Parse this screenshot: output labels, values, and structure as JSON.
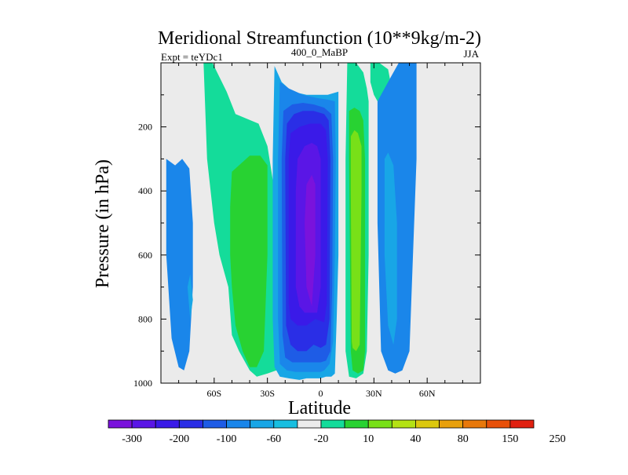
{
  "chart_data": {
    "type": "heatmap",
    "title": "Meridional Streamfunction (10**9kg/m-2)",
    "subtitle_left": "Expt = teYDc1",
    "subtitle_center": "400_0_MaBP",
    "subtitle_right": "JJA",
    "xlabel": "Latitude",
    "ylabel": "Pressure (in hPa)",
    "xlim": [
      -90,
      90
    ],
    "ylim": [
      1000,
      0
    ],
    "x_ticks": [
      {
        "value": -60,
        "label": "60S"
      },
      {
        "value": -30,
        "label": "30S"
      },
      {
        "value": 0,
        "label": "0"
      },
      {
        "value": 30,
        "label": "30N"
      },
      {
        "value": 60,
        "label": "60N"
      }
    ],
    "y_ticks": [
      {
        "value": 200,
        "label": "200"
      },
      {
        "value": 400,
        "label": "400"
      },
      {
        "value": 600,
        "label": "600"
      },
      {
        "value": 800,
        "label": "800"
      },
      {
        "value": 1000,
        "label": "1000"
      }
    ],
    "colorbar": {
      "labels": [
        "-300",
        "-200",
        "-100",
        "-60",
        "-20",
        "10",
        "40",
        "80",
        "150",
        "250"
      ],
      "colors": [
        "#7a12dc",
        "#5a16e6",
        "#3a1ae8",
        "#2a2ee6",
        "#1e5ce6",
        "#1a86ea",
        "#18a6e6",
        "#18bee0",
        "#ebebeb",
        "#14dc9a",
        "#28d232",
        "#78e018",
        "#b4e214",
        "#dcc80e",
        "#e8a00c",
        "#e8780a",
        "#e85008",
        "#e02010"
      ]
    },
    "background_color": "#ebebeb",
    "regions": [
      {
        "name": "contour-sh-high-cyan",
        "level": 5,
        "x": [
          -87,
          -82,
          -78,
          -74,
          -72,
          -72,
          -74,
          -77,
          -80,
          -84,
          -87
        ],
        "y": [
          300,
          320,
          300,
          330,
          500,
          700,
          900,
          960,
          950,
          860,
          600
        ]
      },
      {
        "name": "contour-sh-high-cyan-core",
        "level": 6,
        "x": [
          -75,
          -73.5,
          -72,
          -73.5
        ],
        "y": [
          700,
          660,
          740,
          800
        ]
      },
      {
        "name": "contour-sh-mid-teal",
        "level": 9,
        "x": [
          -66,
          -61,
          -53,
          -48,
          -35,
          -30,
          -26,
          -25,
          -25,
          -30,
          -36,
          -40,
          -46,
          -50,
          -52,
          -57,
          -60,
          -64
        ],
        "y": [
          0,
          0,
          90,
          160,
          190,
          260,
          400,
          600,
          960,
          970,
          980,
          960,
          900,
          850,
          700,
          600,
          500,
          300
        ]
      },
      {
        "name": "contour-sh-mid-green",
        "level": 10,
        "x": [
          -50,
          -40,
          -34,
          -30,
          -30,
          -32,
          -36,
          -40,
          -44,
          -48,
          -50,
          -51,
          -51
        ],
        "y": [
          340,
          290,
          290,
          320,
          600,
          900,
          950,
          950,
          900,
          820,
          700,
          600,
          450
        ]
      },
      {
        "name": "contour-eq-cell-cyan",
        "level": 6,
        "x": [
          -26,
          -22,
          -16,
          -8,
          -2,
          4,
          10,
          10,
          10,
          9,
          8,
          6,
          3,
          0,
          -4,
          -8,
          -12,
          -18,
          -23,
          -26,
          -27,
          -27
        ],
        "y": [
          10,
          60,
          90,
          100,
          100,
          100,
          90,
          300,
          600,
          800,
          970,
          980,
          980,
          985,
          985,
          985,
          990,
          985,
          980,
          950,
          800,
          300
        ]
      },
      {
        "name": "contour-eq-cell-blue1",
        "level": 5,
        "x": [
          -23,
          -18,
          -10,
          -2,
          4,
          8,
          8.5,
          8,
          7,
          5,
          2,
          0,
          -4,
          -9,
          -14,
          -19,
          -23,
          -24,
          -24
        ],
        "y": [
          60,
          80,
          100,
          110,
          115,
          120,
          300,
          600,
          870,
          940,
          960,
          965,
          965,
          965,
          965,
          960,
          940,
          800,
          300
        ]
      },
      {
        "name": "contour-eq-cell-blue2",
        "level": 4,
        "x": [
          -21,
          -16,
          -10,
          -4,
          2,
          6,
          7,
          6.5,
          5.5,
          3,
          0,
          -4,
          -8,
          -12,
          -16,
          -20,
          -21.5,
          -22
        ],
        "y": [
          150,
          130,
          125,
          130,
          140,
          160,
          300,
          700,
          900,
          930,
          935,
          935,
          935,
          935,
          935,
          920,
          850,
          300
        ]
      },
      {
        "name": "contour-eq-cell-blue3",
        "level": 3,
        "x": [
          -19,
          -15,
          -10,
          -4,
          2,
          4.5,
          5.5,
          5,
          3,
          0,
          -4,
          -8,
          -13,
          -17,
          -19.5,
          -20
        ],
        "y": [
          190,
          160,
          150,
          150,
          160,
          180,
          300,
          800,
          880,
          890,
          880,
          900,
          900,
          880,
          820,
          300
        ]
      },
      {
        "name": "contour-eq-cell-blue4",
        "level": 2,
        "x": [
          -17,
          -12,
          -6,
          0,
          3,
          4,
          3.5,
          2,
          -3,
          -8,
          -13,
          -17,
          -18,
          -18
        ],
        "y": [
          220,
          200,
          190,
          190,
          210,
          300,
          750,
          810,
          800,
          820,
          820,
          800,
          750,
          300
        ]
      },
      {
        "name": "contour-eq-cell-indigo",
        "level": 1,
        "x": [
          -13,
          -9,
          -5,
          -2,
          0,
          0,
          -2,
          -5,
          -9,
          -12,
          -14,
          -14
        ],
        "y": [
          300,
          260,
          250,
          260,
          300,
          700,
          780,
          780,
          780,
          760,
          700,
          400
        ]
      },
      {
        "name": "contour-eq-cell-violet",
        "level": 0,
        "x": [
          -8,
          -5,
          -3,
          -3,
          -5,
          -8,
          -9
        ],
        "y": [
          380,
          350,
          380,
          600,
          760,
          700,
          500
        ]
      },
      {
        "name": "contour-nh-teal",
        "level": 9,
        "x": [
          15,
          20,
          24,
          26,
          27,
          27,
          27,
          26,
          24,
          20,
          16,
          14,
          14
        ],
        "y": [
          0,
          0,
          30,
          80,
          120,
          300,
          600,
          900,
          970,
          985,
          980,
          900,
          300
        ]
      },
      {
        "name": "contour-nh-green",
        "level": 10,
        "x": [
          16,
          19,
          22,
          24,
          25,
          25,
          24,
          21,
          18,
          17,
          16
        ],
        "y": [
          150,
          140,
          150,
          180,
          300,
          900,
          960,
          970,
          960,
          900,
          300
        ]
      },
      {
        "name": "contour-nh-lime",
        "level": 11,
        "x": [
          17,
          19,
          21,
          23,
          23,
          22,
          20,
          18,
          17.5,
          17
        ],
        "y": [
          230,
          210,
          220,
          260,
          400,
          880,
          900,
          890,
          870,
          400
        ]
      },
      {
        "name": "contour-nh-upper-teal",
        "level": 9,
        "x": [
          28,
          33,
          38,
          39,
          36,
          32,
          30,
          28
        ],
        "y": [
          0,
          0,
          20,
          50,
          90,
          120,
          100,
          60
        ]
      },
      {
        "name": "contour-nh-cyan",
        "level": 5,
        "x": [
          32,
          36,
          40,
          44,
          50,
          54,
          54,
          52,
          50,
          46,
          42,
          38,
          34,
          32
        ],
        "y": [
          120,
          80,
          40,
          0,
          0,
          0,
          300,
          600,
          900,
          960,
          970,
          960,
          900,
          500
        ]
      },
      {
        "name": "contour-nh-cyan-inner",
        "level": 6,
        "x": [
          36,
          38,
          41,
          43,
          43,
          41,
          38,
          36
        ],
        "y": [
          300,
          280,
          320,
          500,
          800,
          880,
          820,
          600
        ]
      }
    ]
  }
}
